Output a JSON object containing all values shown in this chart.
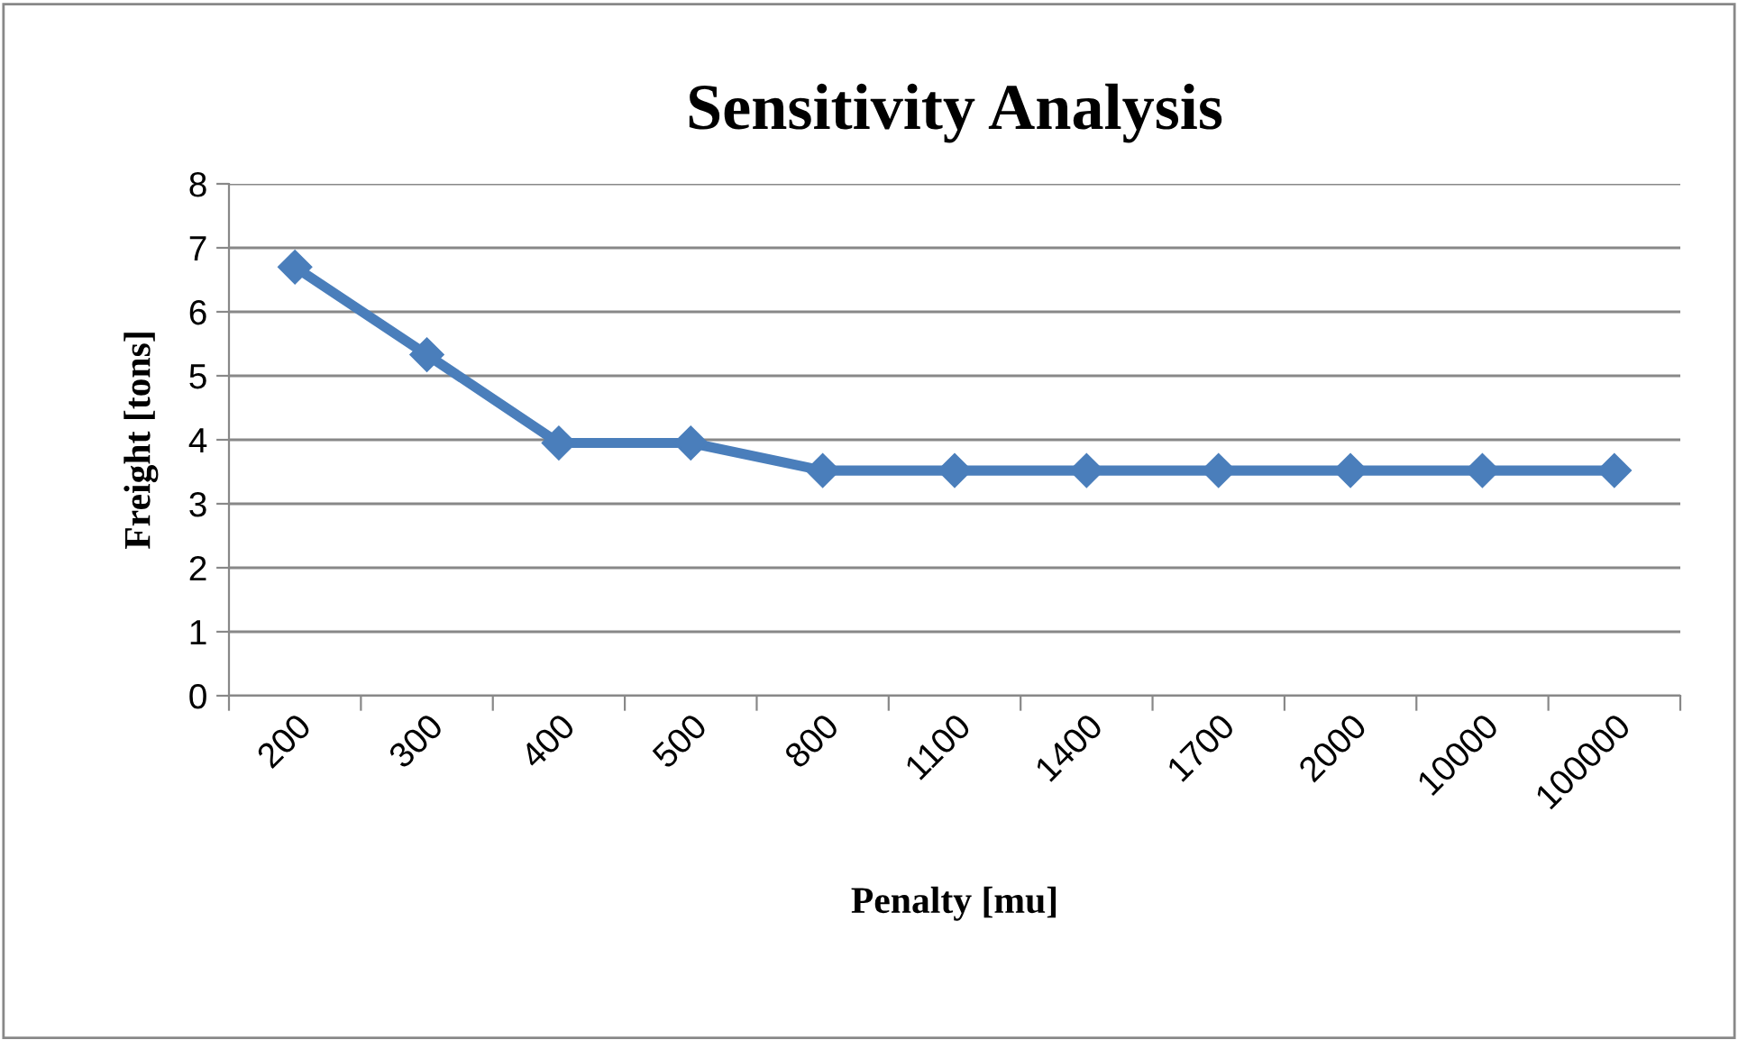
{
  "chart_data": {
    "type": "line",
    "title": "Sensitivity Analysis",
    "xlabel": "Penalty [mu]",
    "ylabel": "Freight [tons]",
    "categories": [
      "200",
      "300",
      "400",
      "500",
      "800",
      "1100",
      "1400",
      "1700",
      "2000",
      "10000",
      "100000"
    ],
    "series": [
      {
        "color": "#4a7ebb",
        "values": [
          6.7,
          5.33,
          3.95,
          3.95,
          3.52,
          3.52,
          3.52,
          3.52,
          3.52,
          3.52,
          3.52
        ]
      }
    ],
    "ylim": [
      0,
      8
    ],
    "yticks": [
      0,
      1,
      2,
      3,
      4,
      5,
      6,
      7,
      8
    ],
    "grid": "y",
    "marker": "diamond",
    "line_style": "solid",
    "legend": false
  }
}
